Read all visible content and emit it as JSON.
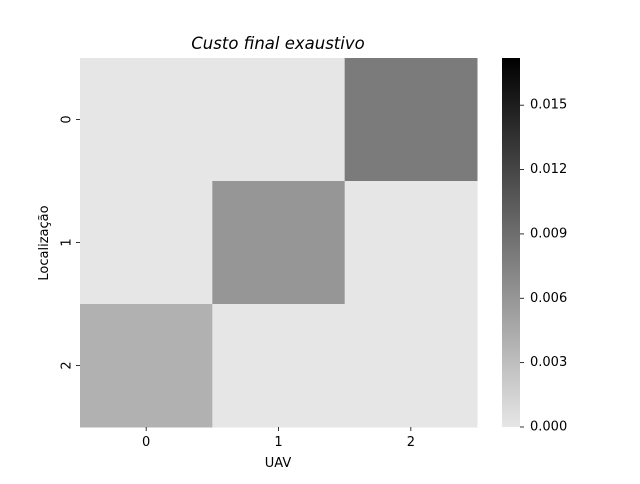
{
  "chart_data": {
    "type": "heatmap",
    "title": "Custo final exaustivo",
    "xlabel": "UAV",
    "ylabel": "Localização",
    "x_categories": [
      "0",
      "1",
      "2"
    ],
    "y_categories": [
      "0",
      "1",
      "2"
    ],
    "values": [
      [
        0.0,
        0.0,
        0.008
      ],
      [
        0.0,
        0.006,
        0.0
      ],
      [
        0.004,
        0.0,
        0.0
      ]
    ],
    "colormap": {
      "min_color": "#e6e6e6",
      "max_color": "#000000"
    },
    "vmin": 0.0,
    "vmax": 0.0172,
    "colorbar_ticks": [
      0.0,
      0.003,
      0.006,
      0.009,
      0.012,
      0.015
    ],
    "colorbar_tick_labels": [
      "0.000",
      "0.003",
      "0.006",
      "0.009",
      "0.012",
      "0.015"
    ]
  }
}
